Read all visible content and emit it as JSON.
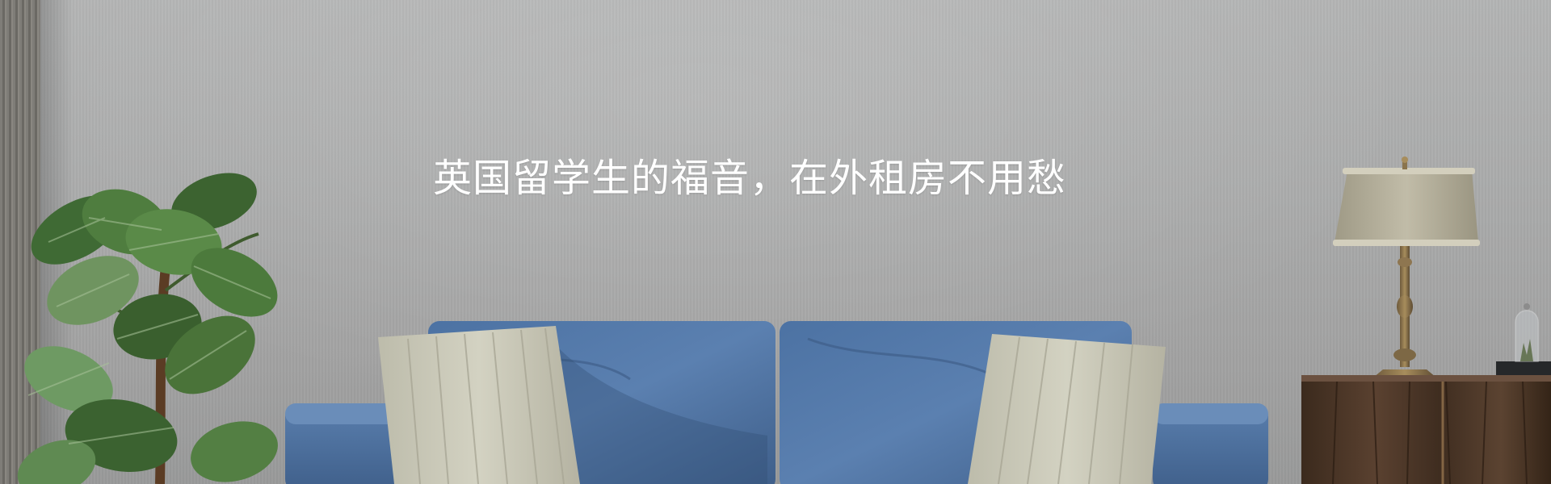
{
  "banner": {
    "headline": "英国留学生的福音，在外租房不用愁"
  },
  "colors": {
    "wall": "#aaabab",
    "sofa": "#4f73a1",
    "pillow": "#c9c8b8",
    "cabinet": "#4a3524",
    "lamp_shade": "#b5b09c",
    "headline": "#ffffff"
  }
}
